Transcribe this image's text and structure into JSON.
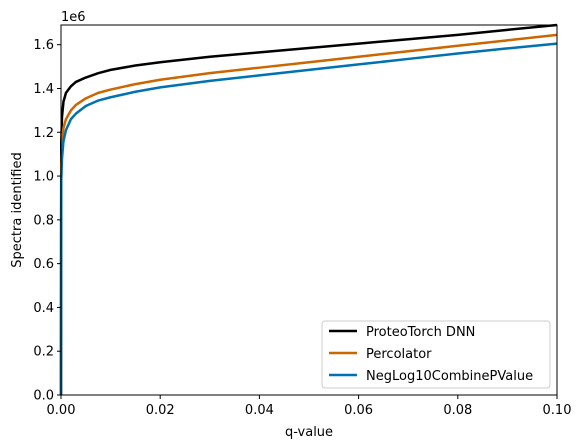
{
  "chart_data": {
    "type": "line",
    "xlabel": "q-value",
    "ylabel": "Spectra identified",
    "offset_label": "1e6",
    "xlim": [
      0.0,
      0.1
    ],
    "ylim": [
      0,
      1.69
    ],
    "xticks": [
      "0.00",
      "0.02",
      "0.04",
      "0.06",
      "0.08",
      "0.10"
    ],
    "yticks": [
      "0.0",
      "0.2",
      "0.4",
      "0.6",
      "0.8",
      "1.0",
      "1.2",
      "1.4",
      "1.6"
    ],
    "grid": false,
    "legend_position": "lower-right",
    "series": [
      {
        "name": "ProteoTorch DNN",
        "color": "#000000",
        "x": [
          0,
          5e-05,
          0.0002,
          0.0005,
          0.001,
          0.002,
          0.003,
          0.005,
          0.0075,
          0.01,
          0.015,
          0.02,
          0.03,
          0.04,
          0.05,
          0.06,
          0.07,
          0.08,
          0.09,
          0.1
        ],
        "y": [
          0,
          1.15,
          1.27,
          1.34,
          1.38,
          1.41,
          1.43,
          1.45,
          1.47,
          1.485,
          1.505,
          1.52,
          1.545,
          1.565,
          1.585,
          1.605,
          1.625,
          1.645,
          1.668,
          1.69
        ]
      },
      {
        "name": "Percolator",
        "color": "#cc6600",
        "x": [
          0,
          5e-05,
          0.0002,
          0.0005,
          0.001,
          0.002,
          0.003,
          0.005,
          0.0075,
          0.01,
          0.015,
          0.02,
          0.03,
          0.04,
          0.05,
          0.06,
          0.07,
          0.08,
          0.09,
          0.1
        ],
        "y": [
          0,
          1.05,
          1.16,
          1.22,
          1.26,
          1.3,
          1.325,
          1.355,
          1.38,
          1.395,
          1.42,
          1.44,
          1.47,
          1.495,
          1.52,
          1.545,
          1.57,
          1.595,
          1.62,
          1.645
        ]
      },
      {
        "name": "NegLog10CombinePValue",
        "color": "#0072b2",
        "x": [
          0,
          5e-05,
          0.0002,
          0.0005,
          0.001,
          0.002,
          0.003,
          0.005,
          0.0075,
          0.01,
          0.015,
          0.02,
          0.03,
          0.04,
          0.05,
          0.06,
          0.07,
          0.08,
          0.09,
          0.1
        ],
        "y": [
          0,
          0.98,
          1.08,
          1.16,
          1.21,
          1.26,
          1.285,
          1.32,
          1.345,
          1.36,
          1.385,
          1.405,
          1.435,
          1.46,
          1.485,
          1.51,
          1.535,
          1.56,
          1.583,
          1.605
        ]
      }
    ]
  }
}
